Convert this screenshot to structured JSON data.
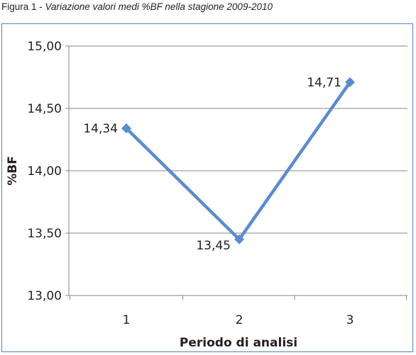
{
  "caption": {
    "lead": "Figura 1",
    "separator": " - ",
    "subtitle": "Variazione valori medi %BF nella stagione 2009-2010"
  },
  "chart_data": {
    "type": "line",
    "categories": [
      "1",
      "2",
      "3"
    ],
    "values": [
      14.34,
      13.45,
      14.71
    ],
    "data_labels": [
      "14,34",
      "13,45",
      "14,71"
    ],
    "title": "Variazione valori medi %BF nella stagione 2009-2010",
    "xlabel": "Periodo di analisi",
    "ylabel": "%BF",
    "ylim": [
      13.0,
      15.0
    ],
    "yticks": [
      13.0,
      13.5,
      14.0,
      14.5,
      15.0
    ],
    "ytick_labels": [
      "13,00",
      "13,50",
      "14,00",
      "14,50",
      "15,00"
    ],
    "grid": "horizontal",
    "legend": "none",
    "colors": {
      "series": "#5b8ccc",
      "marker": "#5b8ccc",
      "grid": "#868686",
      "frame": "#5b7fb8"
    }
  }
}
